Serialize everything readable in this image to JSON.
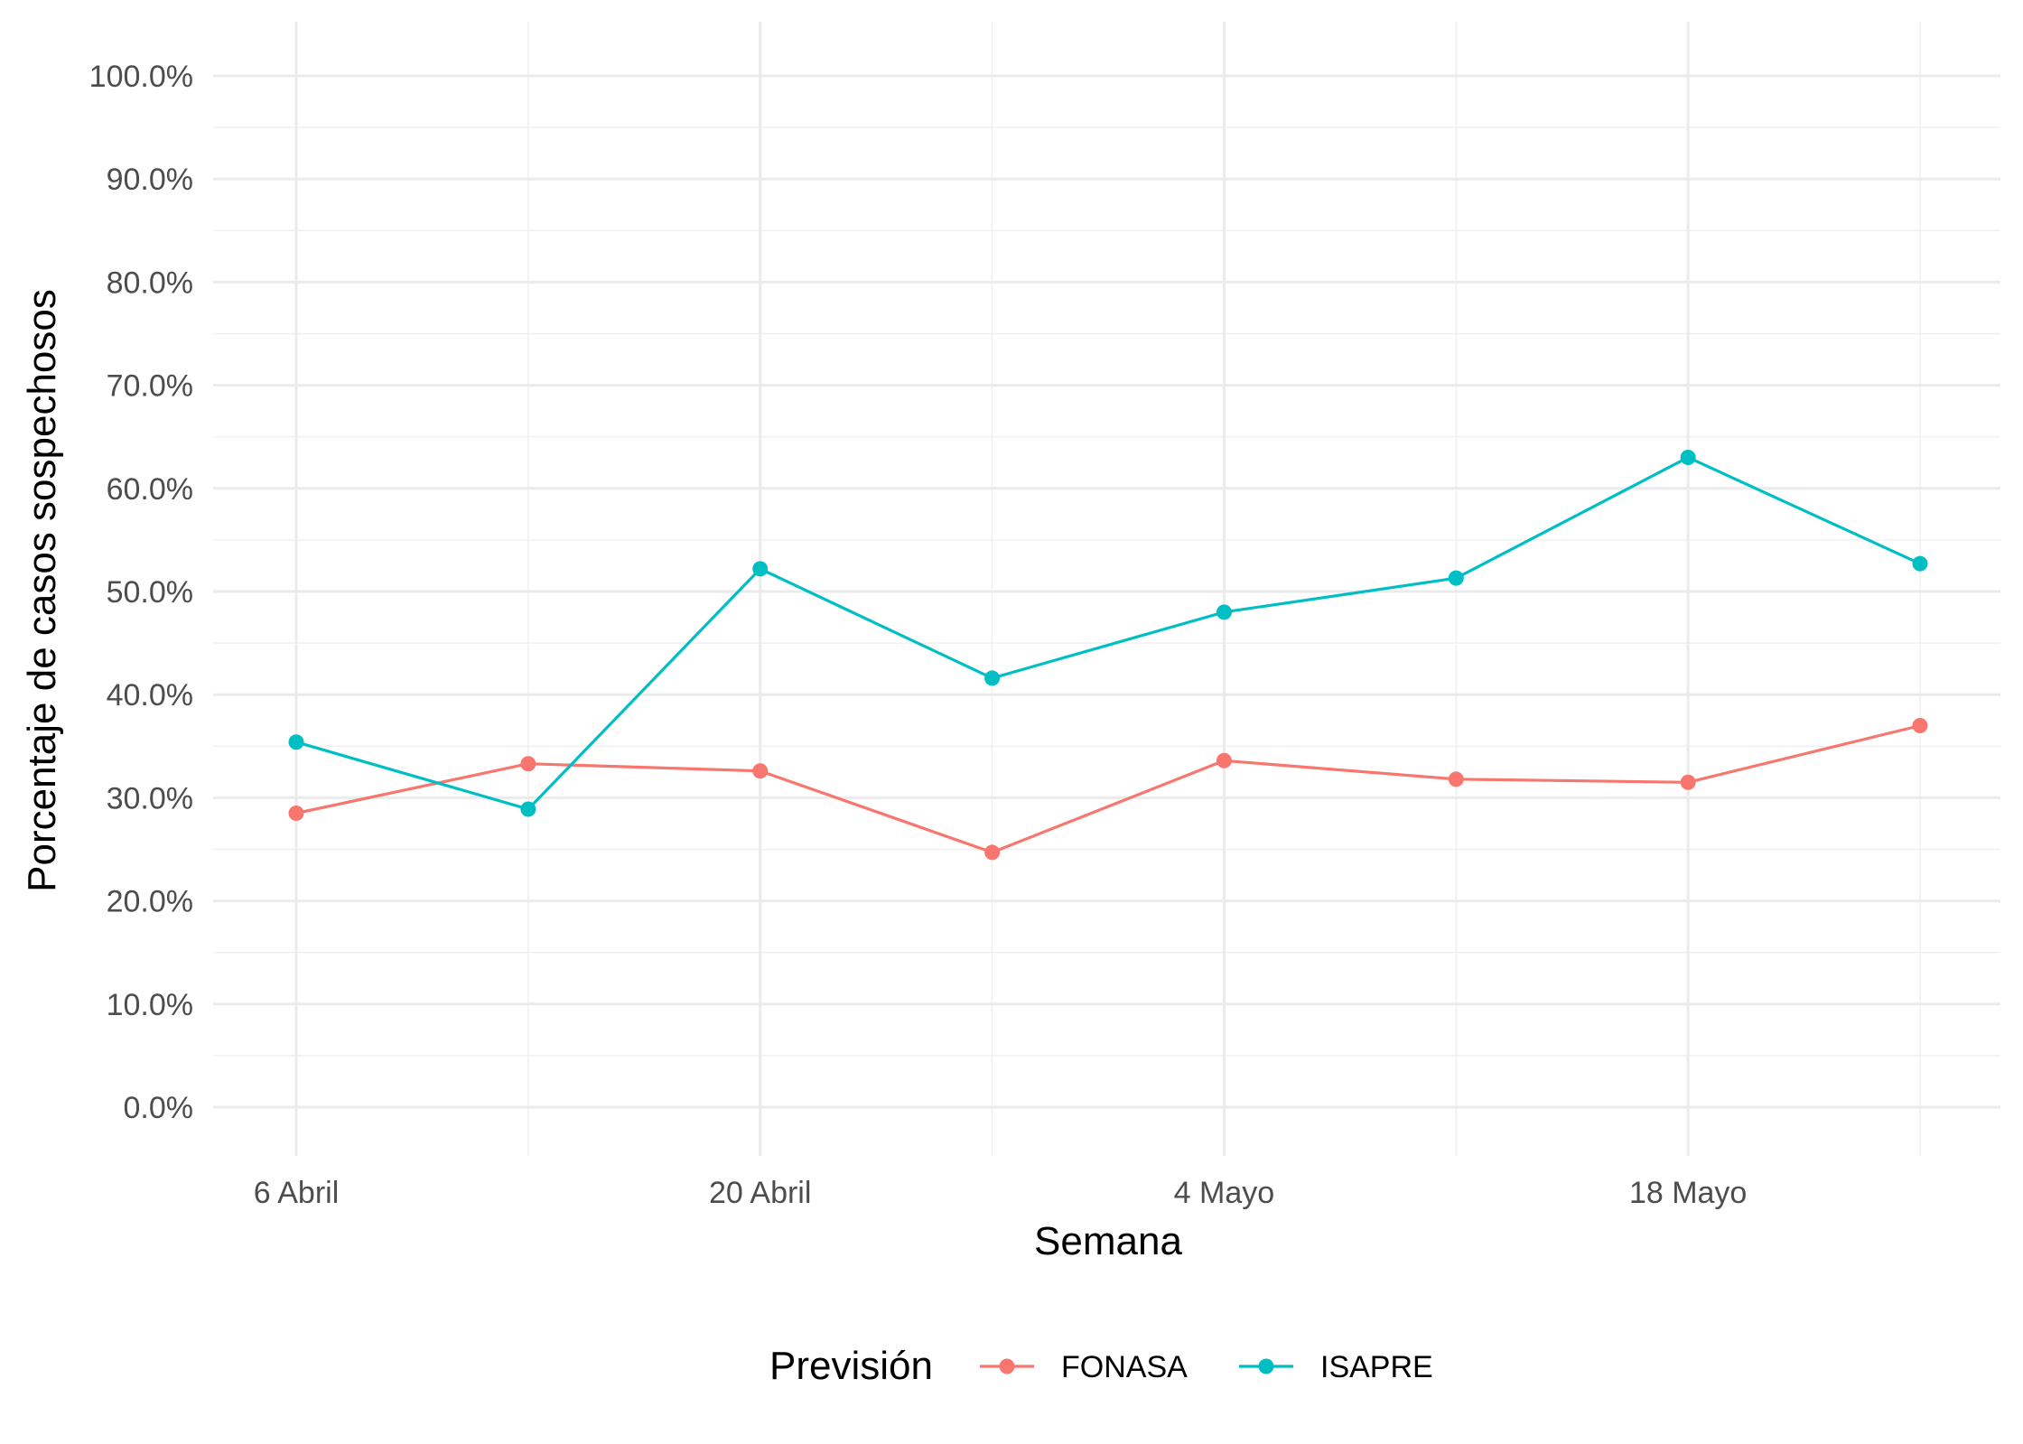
{
  "chart_data": {
    "type": "line",
    "xlabel": "Semana",
    "ylabel": "Porcentaje de casos sospechosos",
    "x": [
      "2020-04-06",
      "2020-04-13",
      "2020-04-20",
      "2020-04-27",
      "2020-05-04",
      "2020-05-11",
      "2020-05-18",
      "2020-05-25"
    ],
    "x_ticks": [
      {
        "x": "2020-04-06",
        "label": "6 Abril"
      },
      {
        "x": "2020-04-20",
        "label": "20 Abril"
      },
      {
        "x": "2020-05-04",
        "label": "4 Mayo"
      },
      {
        "x": "2020-05-18",
        "label": "18 Mayo"
      }
    ],
    "y_ticks": [
      0,
      10,
      20,
      30,
      40,
      50,
      60,
      70,
      80,
      90,
      100
    ],
    "y_tick_labels": [
      "0.0%",
      "10.0%",
      "20.0%",
      "30.0%",
      "40.0%",
      "50.0%",
      "60.0%",
      "70.0%",
      "80.0%",
      "90.0%",
      "100.0%"
    ],
    "ylim": [
      0,
      100
    ],
    "grid": true,
    "legend_title": "Previsión",
    "legend_position": "bottom",
    "series": [
      {
        "name": "FONASA",
        "color": "#F8766D",
        "values": [
          28.5,
          33.3,
          32.6,
          24.7,
          33.6,
          31.8,
          31.5,
          37.0
        ]
      },
      {
        "name": "ISAPRE",
        "color": "#00BFC4",
        "values": [
          35.4,
          28.9,
          52.2,
          41.6,
          48.0,
          51.3,
          63.0,
          52.7
        ]
      }
    ]
  }
}
